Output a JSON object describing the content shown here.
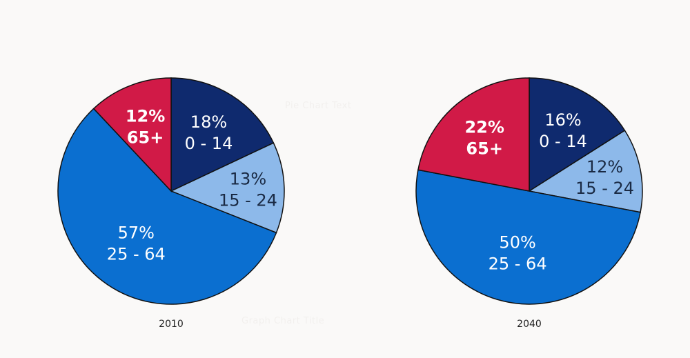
{
  "overlay": {
    "pie_chart_text": "Pie Chart Text",
    "graph_chart_title": "Graph Chart Title"
  },
  "chart_data": [
    {
      "type": "pie",
      "title": "2010",
      "slices": [
        {
          "label": "0 - 14",
          "value": 18,
          "value_label": "18%",
          "color": "#0f2a6e",
          "text_color": "#ffffff",
          "bold": false
        },
        {
          "label": "15 - 24",
          "value": 13,
          "value_label": "13%",
          "color": "#8db9ea",
          "text_color": "#1a2a44",
          "bold": false
        },
        {
          "label": "25 - 64",
          "value": 57,
          "value_label": "57%",
          "color": "#0b6fd0",
          "text_color": "#ffffff",
          "bold": false
        },
        {
          "label": "65+",
          "value": 12,
          "value_label": "12%",
          "color": "#d11a47",
          "text_color": "#ffffff",
          "bold": true
        }
      ]
    },
    {
      "type": "pie",
      "title": "2040",
      "slices": [
        {
          "label": "0 - 14",
          "value": 16,
          "value_label": "16%",
          "color": "#0f2a6e",
          "text_color": "#ffffff",
          "bold": false
        },
        {
          "label": "15 - 24",
          "value": 12,
          "value_label": "12%",
          "color": "#8db9ea",
          "text_color": "#1a2a44",
          "bold": false
        },
        {
          "label": "25 - 64",
          "value": 50,
          "value_label": "50%",
          "color": "#0b6fd0",
          "text_color": "#ffffff",
          "bold": false
        },
        {
          "label": "65+",
          "value": 22,
          "value_label": "22%",
          "color": "#d11a47",
          "text_color": "#ffffff",
          "bold": true
        }
      ]
    }
  ]
}
